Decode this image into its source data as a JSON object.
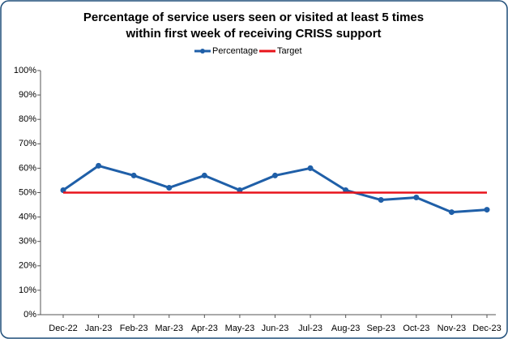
{
  "chart_data": {
    "type": "line",
    "title": [
      "Percentage of service users seen or visited at least 5 times",
      "within first week of receiving CRISS support"
    ],
    "categories": [
      "Dec-22",
      "Jan-23",
      "Feb-23",
      "Mar-23",
      "Apr-23",
      "May-23",
      "Jun-23",
      "Jul-23",
      "Aug-23",
      "Sep-23",
      "Oct-23",
      "Nov-23",
      "Dec-23"
    ],
    "series": [
      {
        "name": "Percentage",
        "color": "#1f5fa8",
        "values": [
          51,
          61,
          57,
          52,
          57,
          51,
          57,
          60,
          51,
          47,
          48,
          42,
          43
        ]
      },
      {
        "name": "Target",
        "color": "#e8141b",
        "values": [
          50,
          50,
          50,
          50,
          50,
          50,
          50,
          50,
          50,
          50,
          50,
          50,
          50
        ]
      }
    ],
    "ylim": [
      0,
      100
    ],
    "yticks": [
      {
        "value": 0,
        "label": "0%"
      },
      {
        "value": 10,
        "label": "10%"
      },
      {
        "value": 20,
        "label": "20%"
      },
      {
        "value": 30,
        "label": "30%"
      },
      {
        "value": 40,
        "label": "40%"
      },
      {
        "value": 50,
        "label": "50%"
      },
      {
        "value": 60,
        "label": "60%"
      },
      {
        "value": 70,
        "label": "70%"
      },
      {
        "value": 80,
        "label": "80%"
      },
      {
        "value": 90,
        "label": "90%"
      },
      {
        "value": 100,
        "label": "100%"
      }
    ],
    "legend": "top"
  }
}
